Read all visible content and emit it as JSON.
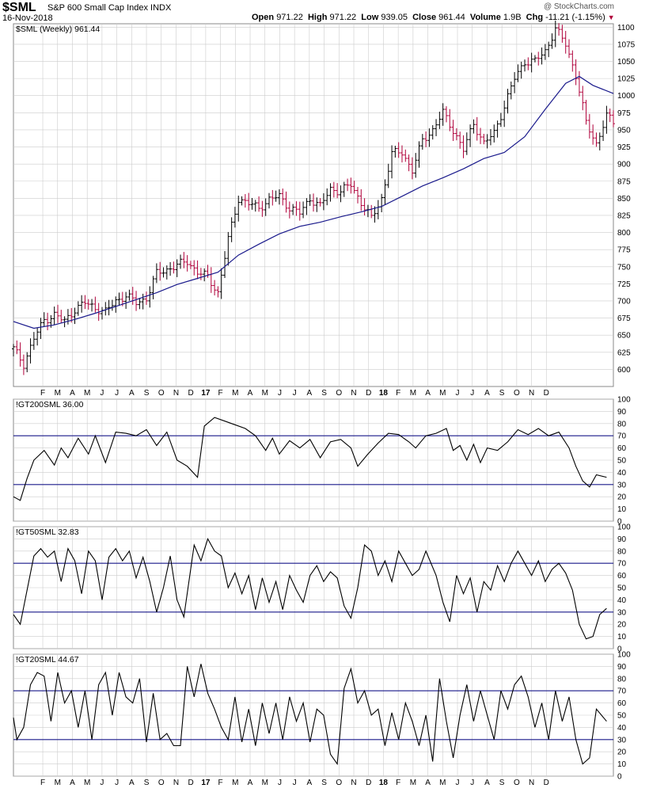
{
  "header": {
    "symbol": "$SML",
    "name": "S&P 600 Small Cap Index",
    "exchange": "INDX",
    "date": "16-Nov-2018",
    "watermark": "@ StockCharts.com",
    "open_label": "Open",
    "open": "971.22",
    "high_label": "High",
    "high": "971.22",
    "low_label": "Low",
    "low": "939.05",
    "close_label": "Close",
    "close": "961.44",
    "volume_label": "Volume",
    "volume": "1.9B",
    "chg_label": "Chg",
    "chg": "-11.21 (-1.15%)",
    "chg_arrow": "▼"
  },
  "colors": {
    "up": "#000000",
    "down": "#b0003a",
    "ma": "#1a1a8c",
    "grid": "#cccccc",
    "ref": "#1a1a8c"
  },
  "chart_data": [
    {
      "type": "ohlc",
      "label": "$SML (Weekly) 961.44",
      "ylim": [
        575,
        1105
      ],
      "yticks": [
        600,
        625,
        650,
        675,
        700,
        725,
        750,
        775,
        800,
        825,
        850,
        875,
        900,
        925,
        950,
        975,
        1000,
        1025,
        1050,
        1075,
        1100
      ],
      "overlay_name": "moving average",
      "close_points": [
        [
          0,
          630
        ],
        [
          3,
          608
        ],
        [
          6,
          645
        ],
        [
          9,
          672
        ],
        [
          12,
          680
        ],
        [
          15,
          670
        ],
        [
          18,
          688
        ],
        [
          21,
          697
        ],
        [
          24,
          690
        ],
        [
          27,
          684
        ],
        [
          30,
          700
        ],
        [
          33,
          708
        ],
        [
          36,
          697
        ],
        [
          39,
          704
        ],
        [
          42,
          740
        ],
        [
          45,
          746
        ],
        [
          48,
          752
        ],
        [
          51,
          758
        ],
        [
          54,
          742
        ],
        [
          57,
          735
        ],
        [
          60,
          712
        ],
        [
          63,
          790
        ],
        [
          66,
          850
        ],
        [
          69,
          842
        ],
        [
          72,
          836
        ],
        [
          75,
          848
        ],
        [
          78,
          853
        ],
        [
          81,
          836
        ],
        [
          84,
          828
        ],
        [
          87,
          850
        ],
        [
          90,
          838
        ],
        [
          93,
          864
        ],
        [
          96,
          860
        ],
        [
          99,
          870
        ],
        [
          102,
          844
        ],
        [
          105,
          820
        ],
        [
          108,
          850
        ],
        [
          111,
          915
        ],
        [
          114,
          918
        ],
        [
          117,
          890
        ],
        [
          120,
          935
        ],
        [
          123,
          950
        ],
        [
          126,
          975
        ],
        [
          129,
          950
        ],
        [
          132,
          920
        ],
        [
          135,
          960
        ],
        [
          138,
          930
        ],
        [
          141,
          945
        ],
        [
          144,
          985
        ],
        [
          147,
          1025
        ],
        [
          150,
          1050
        ],
        [
          153,
          1050
        ],
        [
          156,
          1065
        ],
        [
          159,
          1098
        ],
        [
          162,
          1075
        ],
        [
          165,
          1030
        ],
        [
          168,
          960
        ],
        [
          171,
          930
        ],
        [
          174,
          970
        ],
        [
          176,
          961
        ]
      ],
      "ma_points": [
        [
          0,
          670
        ],
        [
          6,
          660
        ],
        [
          12,
          665
        ],
        [
          18,
          673
        ],
        [
          24,
          682
        ],
        [
          30,
          692
        ],
        [
          36,
          702
        ],
        [
          42,
          712
        ],
        [
          48,
          724
        ],
        [
          54,
          733
        ],
        [
          60,
          742
        ],
        [
          66,
          767
        ],
        [
          72,
          783
        ],
        [
          78,
          798
        ],
        [
          84,
          809
        ],
        [
          90,
          815
        ],
        [
          96,
          823
        ],
        [
          102,
          830
        ],
        [
          108,
          838
        ],
        [
          114,
          853
        ],
        [
          120,
          868
        ],
        [
          126,
          880
        ],
        [
          132,
          893
        ],
        [
          138,
          908
        ],
        [
          144,
          917
        ],
        [
          150,
          940
        ],
        [
          156,
          980
        ],
        [
          162,
          1018
        ],
        [
          166,
          1028
        ],
        [
          170,
          1015
        ],
        [
          176,
          1003
        ]
      ]
    },
    {
      "type": "line",
      "label": "!GT200SML 36.00",
      "ylim": [
        0,
        100
      ],
      "yticks": [
        0,
        10,
        20,
        30,
        40,
        50,
        60,
        70,
        80,
        90,
        100
      ],
      "ref_lines": [
        30,
        70
      ],
      "points": [
        [
          0,
          20
        ],
        [
          2,
          17
        ],
        [
          4,
          35
        ],
        [
          6,
          50
        ],
        [
          9,
          58
        ],
        [
          12,
          46
        ],
        [
          14,
          60
        ],
        [
          16,
          52
        ],
        [
          19,
          68
        ],
        [
          22,
          55
        ],
        [
          24,
          70
        ],
        [
          27,
          48
        ],
        [
          30,
          73
        ],
        [
          33,
          72
        ],
        [
          36,
          70
        ],
        [
          39,
          75
        ],
        [
          42,
          62
        ],
        [
          45,
          73
        ],
        [
          48,
          50
        ],
        [
          51,
          45
        ],
        [
          54,
          36
        ],
        [
          56,
          78
        ],
        [
          59,
          85
        ],
        [
          62,
          82
        ],
        [
          65,
          79
        ],
        [
          68,
          76
        ],
        [
          71,
          70
        ],
        [
          74,
          58
        ],
        [
          76,
          68
        ],
        [
          78,
          55
        ],
        [
          81,
          66
        ],
        [
          84,
          60
        ],
        [
          87,
          67
        ],
        [
          90,
          52
        ],
        [
          93,
          65
        ],
        [
          96,
          67
        ],
        [
          99,
          60
        ],
        [
          101,
          45
        ],
        [
          104,
          55
        ],
        [
          107,
          64
        ],
        [
          110,
          72
        ],
        [
          113,
          71
        ],
        [
          116,
          65
        ],
        [
          118,
          60
        ],
        [
          121,
          70
        ],
        [
          124,
          72
        ],
        [
          127,
          76
        ],
        [
          129,
          58
        ],
        [
          131,
          62
        ],
        [
          133,
          50
        ],
        [
          135,
          63
        ],
        [
          137,
          48
        ],
        [
          139,
          60
        ],
        [
          142,
          58
        ],
        [
          145,
          65
        ],
        [
          148,
          75
        ],
        [
          151,
          71
        ],
        [
          154,
          76
        ],
        [
          157,
          70
        ],
        [
          160,
          73
        ],
        [
          163,
          60
        ],
        [
          165,
          45
        ],
        [
          167,
          33
        ],
        [
          169,
          28
        ],
        [
          171,
          38
        ],
        [
          174,
          36
        ]
      ]
    },
    {
      "type": "line",
      "label": "!GT50SML 32.83",
      "ylim": [
        0,
        100
      ],
      "yticks": [
        0,
        10,
        20,
        30,
        40,
        50,
        60,
        70,
        80,
        90,
        100
      ],
      "ref_lines": [
        30,
        70
      ],
      "points": [
        [
          0,
          28
        ],
        [
          2,
          20
        ],
        [
          4,
          48
        ],
        [
          6,
          76
        ],
        [
          8,
          82
        ],
        [
          10,
          75
        ],
        [
          12,
          80
        ],
        [
          14,
          55
        ],
        [
          16,
          82
        ],
        [
          18,
          72
        ],
        [
          20,
          45
        ],
        [
          22,
          80
        ],
        [
          24,
          72
        ],
        [
          26,
          40
        ],
        [
          28,
          75
        ],
        [
          30,
          82
        ],
        [
          32,
          72
        ],
        [
          34,
          80
        ],
        [
          36,
          58
        ],
        [
          38,
          75
        ],
        [
          40,
          55
        ],
        [
          42,
          30
        ],
        [
          44,
          50
        ],
        [
          46,
          76
        ],
        [
          48,
          40
        ],
        [
          50,
          26
        ],
        [
          53,
          85
        ],
        [
          55,
          72
        ],
        [
          57,
          90
        ],
        [
          59,
          80
        ],
        [
          61,
          76
        ],
        [
          63,
          50
        ],
        [
          65,
          62
        ],
        [
          67,
          45
        ],
        [
          69,
          60
        ],
        [
          71,
          32
        ],
        [
          73,
          58
        ],
        [
          75,
          38
        ],
        [
          77,
          55
        ],
        [
          79,
          32
        ],
        [
          81,
          60
        ],
        [
          83,
          48
        ],
        [
          85,
          38
        ],
        [
          87,
          60
        ],
        [
          89,
          68
        ],
        [
          91,
          55
        ],
        [
          93,
          63
        ],
        [
          95,
          58
        ],
        [
          97,
          35
        ],
        [
          99,
          25
        ],
        [
          101,
          50
        ],
        [
          103,
          85
        ],
        [
          105,
          80
        ],
        [
          107,
          60
        ],
        [
          109,
          72
        ],
        [
          111,
          55
        ],
        [
          113,
          80
        ],
        [
          115,
          70
        ],
        [
          117,
          60
        ],
        [
          119,
          65
        ],
        [
          121,
          80
        ],
        [
          124,
          60
        ],
        [
          126,
          38
        ],
        [
          128,
          22
        ],
        [
          130,
          60
        ],
        [
          132,
          45
        ],
        [
          134,
          58
        ],
        [
          136,
          30
        ],
        [
          138,
          55
        ],
        [
          140,
          48
        ],
        [
          142,
          68
        ],
        [
          144,
          55
        ],
        [
          146,
          70
        ],
        [
          148,
          80
        ],
        [
          150,
          70
        ],
        [
          152,
          60
        ],
        [
          154,
          72
        ],
        [
          156,
          55
        ],
        [
          158,
          65
        ],
        [
          160,
          70
        ],
        [
          162,
          62
        ],
        [
          164,
          48
        ],
        [
          166,
          20
        ],
        [
          168,
          8
        ],
        [
          170,
          10
        ],
        [
          172,
          28
        ],
        [
          174,
          33
        ]
      ]
    },
    {
      "type": "line",
      "label": "!GT20SML 44.67",
      "ylim": [
        0,
        100
      ],
      "yticks": [
        0,
        10,
        20,
        30,
        40,
        50,
        60,
        70,
        80,
        90,
        100
      ],
      "ref_lines": [
        30,
        70
      ],
      "points": [
        [
          0,
          48
        ],
        [
          1,
          30
        ],
        [
          3,
          40
        ],
        [
          5,
          75
        ],
        [
          7,
          85
        ],
        [
          9,
          82
        ],
        [
          11,
          45
        ],
        [
          13,
          85
        ],
        [
          15,
          60
        ],
        [
          17,
          70
        ],
        [
          19,
          40
        ],
        [
          21,
          70
        ],
        [
          23,
          30
        ],
        [
          25,
          75
        ],
        [
          27,
          85
        ],
        [
          29,
          50
        ],
        [
          31,
          85
        ],
        [
          33,
          65
        ],
        [
          35,
          60
        ],
        [
          37,
          80
        ],
        [
          39,
          28
        ],
        [
          41,
          68
        ],
        [
          43,
          30
        ],
        [
          45,
          35
        ],
        [
          47,
          25
        ],
        [
          49,
          25
        ],
        [
          51,
          90
        ],
        [
          53,
          65
        ],
        [
          55,
          92
        ],
        [
          57,
          68
        ],
        [
          59,
          55
        ],
        [
          61,
          40
        ],
        [
          63,
          30
        ],
        [
          65,
          65
        ],
        [
          67,
          28
        ],
        [
          69,
          55
        ],
        [
          71,
          25
        ],
        [
          73,
          60
        ],
        [
          75,
          35
        ],
        [
          77,
          60
        ],
        [
          79,
          30
        ],
        [
          81,
          65
        ],
        [
          83,
          45
        ],
        [
          85,
          60
        ],
        [
          87,
          28
        ],
        [
          89,
          55
        ],
        [
          91,
          50
        ],
        [
          93,
          18
        ],
        [
          95,
          10
        ],
        [
          97,
          72
        ],
        [
          99,
          88
        ],
        [
          101,
          60
        ],
        [
          103,
          70
        ],
        [
          105,
          50
        ],
        [
          107,
          55
        ],
        [
          109,
          25
        ],
        [
          111,
          52
        ],
        [
          113,
          30
        ],
        [
          115,
          60
        ],
        [
          117,
          45
        ],
        [
          119,
          25
        ],
        [
          121,
          50
        ],
        [
          123,
          12
        ],
        [
          125,
          80
        ],
        [
          127,
          45
        ],
        [
          129,
          15
        ],
        [
          131,
          50
        ],
        [
          133,
          75
        ],
        [
          135,
          45
        ],
        [
          137,
          70
        ],
        [
          139,
          50
        ],
        [
          141,
          30
        ],
        [
          143,
          70
        ],
        [
          145,
          55
        ],
        [
          147,
          75
        ],
        [
          149,
          82
        ],
        [
          151,
          65
        ],
        [
          153,
          40
        ],
        [
          155,
          60
        ],
        [
          157,
          30
        ],
        [
          159,
          70
        ],
        [
          161,
          45
        ],
        [
          163,
          65
        ],
        [
          165,
          30
        ],
        [
          167,
          10
        ],
        [
          169,
          15
        ],
        [
          171,
          55
        ],
        [
          174,
          45
        ]
      ]
    }
  ],
  "x_axis": {
    "labels": [
      "F",
      "M",
      "A",
      "M",
      "J",
      "J",
      "A",
      "S",
      "O",
      "N",
      "D",
      "17",
      "F",
      "M",
      "A",
      "M",
      "J",
      "J",
      "A",
      "S",
      "O",
      "N",
      "D",
      "18",
      "F",
      "M",
      "A",
      "M",
      "J",
      "J",
      "A",
      "S",
      "O",
      "N",
      "D"
    ],
    "bold": [
      "17",
      "18"
    ]
  }
}
